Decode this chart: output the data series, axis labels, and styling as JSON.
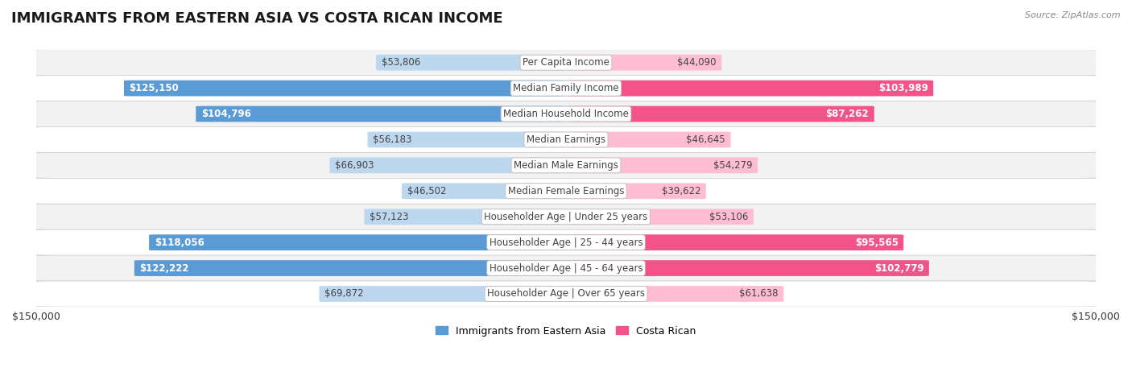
{
  "title": "IMMIGRANTS FROM EASTERN ASIA VS COSTA RICAN INCOME",
  "source": "Source: ZipAtlas.com",
  "categories": [
    "Per Capita Income",
    "Median Family Income",
    "Median Household Income",
    "Median Earnings",
    "Median Male Earnings",
    "Median Female Earnings",
    "Householder Age | Under 25 years",
    "Householder Age | 25 - 44 years",
    "Householder Age | 45 - 64 years",
    "Householder Age | Over 65 years"
  ],
  "left_values": [
    53806,
    125150,
    104796,
    56183,
    66903,
    46502,
    57123,
    118056,
    122222,
    69872
  ],
  "right_values": [
    44090,
    103989,
    87262,
    46645,
    54279,
    39622,
    53106,
    95565,
    102779,
    61638
  ],
  "left_labels": [
    "$53,806",
    "$125,150",
    "$104,796",
    "$56,183",
    "$66,903",
    "$46,502",
    "$57,123",
    "$118,056",
    "$122,222",
    "$69,872"
  ],
  "right_labels": [
    "$44,090",
    "$103,989",
    "$87,262",
    "$46,645",
    "$54,279",
    "$39,622",
    "$53,106",
    "$95,565",
    "$102,779",
    "$61,638"
  ],
  "left_color_strong": "#5B9BD5",
  "left_color_light": "#BDD7EE",
  "right_color_strong": "#F4538A",
  "right_color_light": "#FFBDD4",
  "strong_threshold": 80000,
  "max_value": 150000,
  "bar_height": 0.62,
  "background_color": "#ffffff",
  "row_bg_even": "#f2f2f2",
  "row_bg_odd": "#ffffff",
  "legend_left": "Immigrants from Eastern Asia",
  "legend_right": "Costa Rican",
  "title_fontsize": 13,
  "label_fontsize": 8.5,
  "category_fontsize": 8.5,
  "source_fontsize": 8
}
